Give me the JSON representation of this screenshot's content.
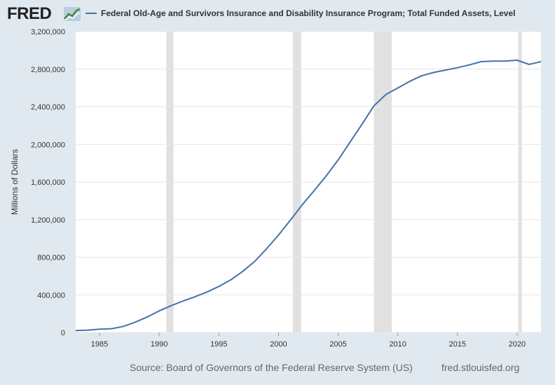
{
  "header": {
    "logo": "FRED",
    "logo_icon": "line-chart-icon"
  },
  "footer": {
    "source": "Source: Board of Governors of the Federal Reserve System (US)",
    "url": "fred.stlouisfed.org"
  },
  "colors": {
    "background": "#e1e9f0",
    "plot_background": "#ffffff",
    "series": "#4572a7",
    "recession": "#e1e1e1",
    "grid": "#e6e6e6"
  },
  "chart_data": {
    "type": "line",
    "title": "",
    "xlabel": "",
    "ylabel": "Millions of Dollars",
    "xlim": [
      1983,
      2022
    ],
    "ylim": [
      0,
      3200000
    ],
    "grid": "horizontal",
    "legend_position": "top-left",
    "x_ticks": [
      1985,
      1990,
      1995,
      2000,
      2005,
      2010,
      2015,
      2020
    ],
    "x_tick_labels": [
      "1985",
      "1990",
      "1995",
      "2000",
      "2005",
      "2010",
      "2015",
      "2020"
    ],
    "y_ticks": [
      0,
      400000,
      800000,
      1200000,
      1600000,
      2000000,
      2400000,
      2800000,
      3200000
    ],
    "y_tick_labels": [
      "0",
      "400,000",
      "800,000",
      "1,200,000",
      "1,600,000",
      "2,000,000",
      "2,400,000",
      "2,800,000",
      "3,200,000"
    ],
    "recessions": [
      [
        1990.6,
        1991.2
      ],
      [
        2001.2,
        2001.9
      ],
      [
        2008.0,
        2009.5
      ],
      [
        2020.1,
        2020.4
      ]
    ],
    "series": [
      {
        "name": "Federal Old-Age and Survivors Insurance and Disability Insurance Program; Total Funded Assets, Level",
        "x": [
          1983,
          1984,
          1985,
          1986,
          1987,
          1988,
          1989,
          1990,
          1991,
          1992,
          1993,
          1994,
          1995,
          1996,
          1997,
          1998,
          1999,
          2000,
          2001,
          2002,
          2003,
          2004,
          2005,
          2006,
          2007,
          2008,
          2009,
          2010,
          2011,
          2012,
          2013,
          2014,
          2015,
          2016,
          2017,
          2018,
          2019,
          2020,
          2021,
          2022
        ],
        "values": [
          20000,
          25000,
          35000,
          40000,
          65000,
          110000,
          165000,
          230000,
          285000,
          335000,
          380000,
          430000,
          490000,
          560000,
          650000,
          755000,
          890000,
          1035000,
          1195000,
          1360000,
          1510000,
          1665000,
          1835000,
          2025000,
          2215000,
          2410000,
          2530000,
          2600000,
          2670000,
          2730000,
          2765000,
          2790000,
          2815000,
          2845000,
          2880000,
          2885000,
          2885000,
          2895000,
          2850000,
          2880000
        ]
      }
    ]
  }
}
